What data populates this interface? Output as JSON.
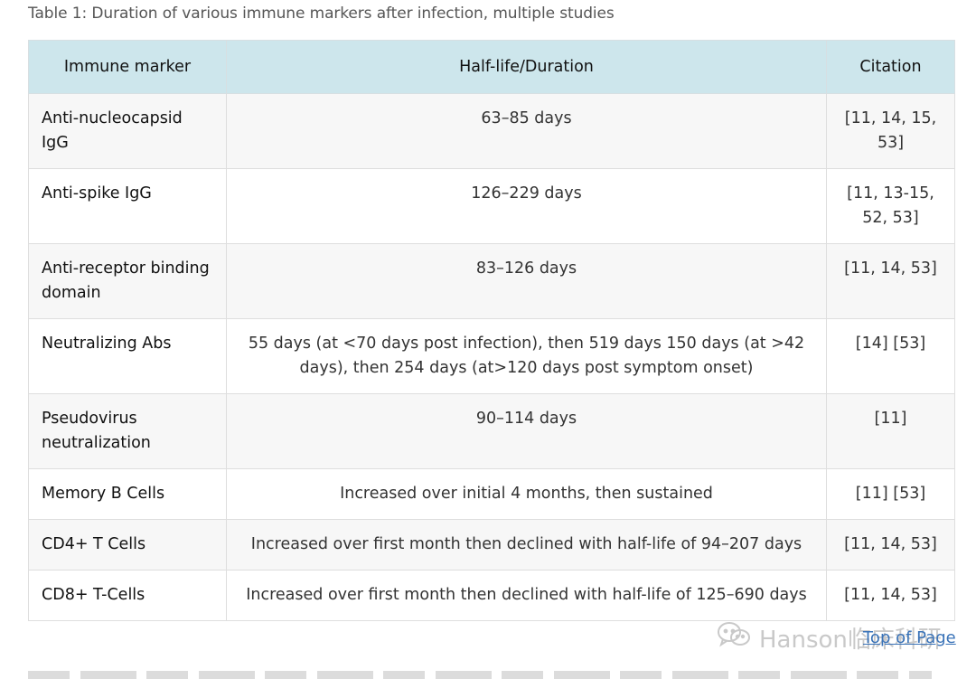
{
  "caption": "Table 1: Duration of various immune markers after infection, multiple studies",
  "headers": {
    "marker": "Immune marker",
    "duration": "Half-life/Duration",
    "citation": "Citation"
  },
  "rows": [
    {
      "marker": "Anti-nucleocapsid IgG",
      "duration": "63–85 days",
      "citation": "[11, 14, 15, 53]"
    },
    {
      "marker": "Anti-spike IgG",
      "duration": "126–229 days",
      "citation": "[11, 13-15, 52, 53]"
    },
    {
      "marker": "Anti-receptor binding domain",
      "duration": "83–126 days",
      "citation": "[11, 14, 53]"
    },
    {
      "marker": "Neutralizing Abs",
      "duration": "55 days (at <70 days post infection), then 519 days 150 days (at >42 days), then 254 days (at>120 days post symptom onset)",
      "citation": "[14] [53]"
    },
    {
      "marker": "Pseudovirus neutralization",
      "duration": "90–114 days",
      "citation": "[11]"
    },
    {
      "marker": "Memory B Cells",
      "duration": "Increased over initial 4 months, then sustained",
      "citation": "[11] [53]"
    },
    {
      "marker": "CD4+ T Cells",
      "duration": "Increased over first month then declined with half-life of 94–207 days",
      "citation": "[11, 14, 53]"
    },
    {
      "marker": "CD8+ T-Cells",
      "duration": "Increased over first month then declined with half-life of 125–690 days",
      "citation": "[11, 14, 53]"
    }
  ],
  "watermark": "Hanson临床科研",
  "watermark_icon": "wechat-icon",
  "top_link": "Top of Page"
}
